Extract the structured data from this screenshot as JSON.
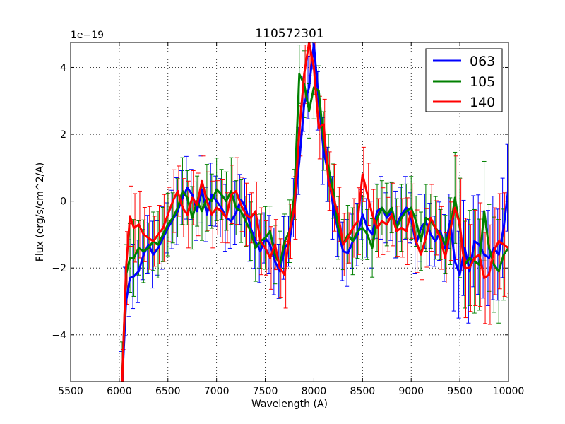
{
  "chart_data": {
    "type": "line",
    "title": "110572301",
    "xlabel": "Wavelength (A)",
    "ylabel": "Flux (erg/s/cm^2/A)",
    "y_offset_label": "1e−19",
    "xlim": [
      5500,
      10000
    ],
    "ylim": [
      -5.4,
      4.75
    ],
    "xticks": [
      5500,
      6000,
      6500,
      7000,
      7500,
      8000,
      8500,
      9000,
      9500,
      10000
    ],
    "yticks": [
      -4,
      -2,
      0,
      2,
      4
    ],
    "ytick_labels": [
      "−4",
      "−2",
      "0",
      "2",
      "4"
    ],
    "grid": true,
    "legend_position": "top-right",
    "series": [
      {
        "name": "063",
        "color": "#0000ff",
        "points": [
          [
            6030,
            -5.4
          ],
          [
            6070,
            -3.0
          ],
          [
            6110,
            -2.3
          ],
          [
            6150,
            -2.25
          ],
          [
            6200,
            -2.1
          ],
          [
            6250,
            -1.6
          ],
          [
            6300,
            -1.3
          ],
          [
            6350,
            -1.6
          ],
          [
            6400,
            -1.4
          ],
          [
            6450,
            -1.1
          ],
          [
            6500,
            -0.8
          ],
          [
            6550,
            -0.55
          ],
          [
            6600,
            -0.3
          ],
          [
            6650,
            0.1
          ],
          [
            6700,
            0.4
          ],
          [
            6750,
            0.2
          ],
          [
            6800,
            -0.3
          ],
          [
            6850,
            0.35
          ],
          [
            6900,
            -0.4
          ],
          [
            6950,
            0.2
          ],
          [
            7000,
            0.0
          ],
          [
            7050,
            -0.2
          ],
          [
            7100,
            -0.5
          ],
          [
            7150,
            -0.6
          ],
          [
            7200,
            -0.35
          ],
          [
            7250,
            0.05
          ],
          [
            7300,
            -0.2
          ],
          [
            7350,
            -0.8
          ],
          [
            7400,
            -1.2
          ],
          [
            7450,
            -1.5
          ],
          [
            7500,
            -1.1
          ],
          [
            7550,
            -1.3
          ],
          [
            7600,
            -1.8
          ],
          [
            7650,
            -2.1
          ],
          [
            7700,
            -1.4
          ],
          [
            7750,
            -1.2
          ],
          [
            7800,
            -0.2
          ],
          [
            7850,
            1.2
          ],
          [
            7900,
            2.9
          ],
          [
            7950,
            3.4
          ],
          [
            8000,
            4.7
          ],
          [
            8050,
            3.0
          ],
          [
            8100,
            1.5
          ],
          [
            8150,
            0.8
          ],
          [
            8200,
            -0.2
          ],
          [
            8250,
            -0.9
          ],
          [
            8300,
            -1.5
          ],
          [
            8350,
            -1.55
          ],
          [
            8400,
            -1.2
          ],
          [
            8450,
            -1.0
          ],
          [
            8500,
            -0.4
          ],
          [
            8550,
            -0.8
          ],
          [
            8600,
            -1.0
          ],
          [
            8650,
            -0.3
          ],
          [
            8700,
            -0.2
          ],
          [
            8750,
            -0.5
          ],
          [
            8800,
            -0.3
          ],
          [
            8850,
            -0.7
          ],
          [
            8900,
            -0.4
          ],
          [
            8950,
            -0.2
          ],
          [
            9000,
            -0.5
          ],
          [
            9050,
            -1.3
          ],
          [
            9100,
            -0.8
          ],
          [
            9150,
            -0.6
          ],
          [
            9200,
            -1.0
          ],
          [
            9250,
            -1.2
          ],
          [
            9300,
            -0.9
          ],
          [
            9350,
            -1.4
          ],
          [
            9400,
            -0.6
          ],
          [
            9450,
            -1.8
          ],
          [
            9500,
            -2.2
          ],
          [
            9550,
            -1.4
          ],
          [
            9600,
            -2.1
          ],
          [
            9650,
            -1.2
          ],
          [
            9700,
            -1.3
          ],
          [
            9750,
            -1.6
          ],
          [
            9800,
            -1.7
          ],
          [
            9850,
            -1.4
          ],
          [
            9900,
            -1.6
          ],
          [
            9950,
            -0.8
          ],
          [
            10000,
            0.4
          ]
        ]
      },
      {
        "name": "105",
        "color": "#008000",
        "points": [
          [
            6030,
            -5.3
          ],
          [
            6070,
            -2.2
          ],
          [
            6110,
            -1.7
          ],
          [
            6150,
            -1.7
          ],
          [
            6200,
            -1.4
          ],
          [
            6250,
            -1.5
          ],
          [
            6300,
            -1.4
          ],
          [
            6350,
            -1.2
          ],
          [
            6400,
            -1.3
          ],
          [
            6450,
            -1.0
          ],
          [
            6500,
            -0.7
          ],
          [
            6550,
            -0.5
          ],
          [
            6600,
            -0.2
          ],
          [
            6650,
            0.3
          ],
          [
            6700,
            0.1
          ],
          [
            6750,
            -0.5
          ],
          [
            6800,
            0.0
          ],
          [
            6850,
            -0.3
          ],
          [
            6900,
            0.1
          ],
          [
            6950,
            0.0
          ],
          [
            7000,
            0.35
          ],
          [
            7050,
            0.2
          ],
          [
            7100,
            0.0
          ],
          [
            7150,
            0.3
          ],
          [
            7200,
            -0.2
          ],
          [
            7250,
            -0.3
          ],
          [
            7300,
            -0.6
          ],
          [
            7350,
            -0.9
          ],
          [
            7400,
            -1.4
          ],
          [
            7450,
            -1.2
          ],
          [
            7500,
            -1.1
          ],
          [
            7550,
            -0.9
          ],
          [
            7600,
            -1.6
          ],
          [
            7650,
            -1.9
          ],
          [
            7700,
            -1.2
          ],
          [
            7750,
            -0.9
          ],
          [
            7800,
            0.2
          ],
          [
            7850,
            3.8
          ],
          [
            7900,
            3.5
          ],
          [
            7950,
            2.7
          ],
          [
            8000,
            3.4
          ],
          [
            8050,
            3.3
          ],
          [
            8100,
            1.8
          ],
          [
            8150,
            1.0
          ],
          [
            8200,
            0.3
          ],
          [
            8250,
            -0.8
          ],
          [
            8300,
            -1.3
          ],
          [
            8350,
            -1.0
          ],
          [
            8400,
            -1.2
          ],
          [
            8450,
            -0.9
          ],
          [
            8500,
            -0.8
          ],
          [
            8550,
            -1.0
          ],
          [
            8600,
            -1.4
          ],
          [
            8650,
            -0.5
          ],
          [
            8700,
            -0.2
          ],
          [
            8750,
            -0.4
          ],
          [
            8800,
            -0.2
          ],
          [
            8850,
            -0.8
          ],
          [
            8900,
            -0.5
          ],
          [
            8950,
            -0.3
          ],
          [
            9000,
            -0.2
          ],
          [
            9050,
            -0.6
          ],
          [
            9100,
            -1.2
          ],
          [
            9150,
            -0.5
          ],
          [
            9200,
            -0.6
          ],
          [
            9250,
            -0.8
          ],
          [
            9300,
            -1.0
          ],
          [
            9350,
            -1.3
          ],
          [
            9400,
            -0.9
          ],
          [
            9450,
            0.1
          ],
          [
            9500,
            -0.8
          ],
          [
            9550,
            -1.9
          ],
          [
            9600,
            -1.7
          ],
          [
            9650,
            -1.8
          ],
          [
            9700,
            -1.9
          ],
          [
            9750,
            -0.3
          ],
          [
            9800,
            -1.4
          ],
          [
            9850,
            -1.9
          ],
          [
            9900,
            -2.1
          ],
          [
            9950,
            -1.6
          ],
          [
            10000,
            -1.4
          ]
        ]
      },
      {
        "name": "140",
        "color": "#ff0000",
        "points": [
          [
            6030,
            -5.4
          ],
          [
            6070,
            -2.0
          ],
          [
            6110,
            -0.45
          ],
          [
            6150,
            -0.8
          ],
          [
            6200,
            -0.7
          ],
          [
            6250,
            -1.0
          ],
          [
            6300,
            -1.1
          ],
          [
            6350,
            -1.2
          ],
          [
            6400,
            -1.0
          ],
          [
            6450,
            -0.8
          ],
          [
            6500,
            -0.4
          ],
          [
            6550,
            0.0
          ],
          [
            6600,
            0.3
          ],
          [
            6650,
            -0.2
          ],
          [
            6700,
            -0.4
          ],
          [
            6750,
            0.1
          ],
          [
            6800,
            -0.1
          ],
          [
            6850,
            0.6
          ],
          [
            6900,
            0.0
          ],
          [
            6950,
            -0.4
          ],
          [
            7000,
            -0.2
          ],
          [
            7050,
            -0.3
          ],
          [
            7100,
            -0.5
          ],
          [
            7150,
            0.2
          ],
          [
            7200,
            0.3
          ],
          [
            7250,
            -0.1
          ],
          [
            7300,
            -0.4
          ],
          [
            7350,
            -0.5
          ],
          [
            7400,
            -0.3
          ],
          [
            7450,
            -1.2
          ],
          [
            7500,
            -1.4
          ],
          [
            7550,
            -1.7
          ],
          [
            7600,
            -1.3
          ],
          [
            7650,
            -2.0
          ],
          [
            7700,
            -2.2
          ],
          [
            7750,
            -0.9
          ],
          [
            7800,
            -0.2
          ],
          [
            7850,
            2.1
          ],
          [
            7900,
            3.8
          ],
          [
            7950,
            4.75
          ],
          [
            8000,
            4.0
          ],
          [
            8050,
            2.2
          ],
          [
            8100,
            2.3
          ],
          [
            8150,
            0.6
          ],
          [
            8200,
            0.1
          ],
          [
            8250,
            -0.4
          ],
          [
            8300,
            -1.3
          ],
          [
            8350,
            -1.1
          ],
          [
            8400,
            -0.8
          ],
          [
            8450,
            -0.6
          ],
          [
            8500,
            0.8
          ],
          [
            8550,
            0.2
          ],
          [
            8600,
            -0.4
          ],
          [
            8650,
            -0.8
          ],
          [
            8700,
            -0.6
          ],
          [
            8750,
            -0.7
          ],
          [
            8800,
            -0.4
          ],
          [
            8850,
            -0.9
          ],
          [
            8900,
            -0.8
          ],
          [
            8950,
            -0.9
          ],
          [
            9000,
            -0.3
          ],
          [
            9050,
            -1.2
          ],
          [
            9100,
            -1.6
          ],
          [
            9150,
            -1.1
          ],
          [
            9200,
            -0.5
          ],
          [
            9250,
            -0.8
          ],
          [
            9300,
            -1.1
          ],
          [
            9350,
            -1.7
          ],
          [
            9400,
            -0.9
          ],
          [
            9450,
            -0.2
          ],
          [
            9500,
            -0.7
          ],
          [
            9550,
            -2.0
          ],
          [
            9600,
            -2.0
          ],
          [
            9650,
            -1.7
          ],
          [
            9700,
            -1.6
          ],
          [
            9750,
            -2.3
          ],
          [
            9800,
            -2.2
          ],
          [
            9850,
            -1.5
          ],
          [
            9900,
            -1.2
          ],
          [
            9950,
            -1.3
          ],
          [
            10000,
            -1.4
          ]
        ]
      }
    ]
  }
}
